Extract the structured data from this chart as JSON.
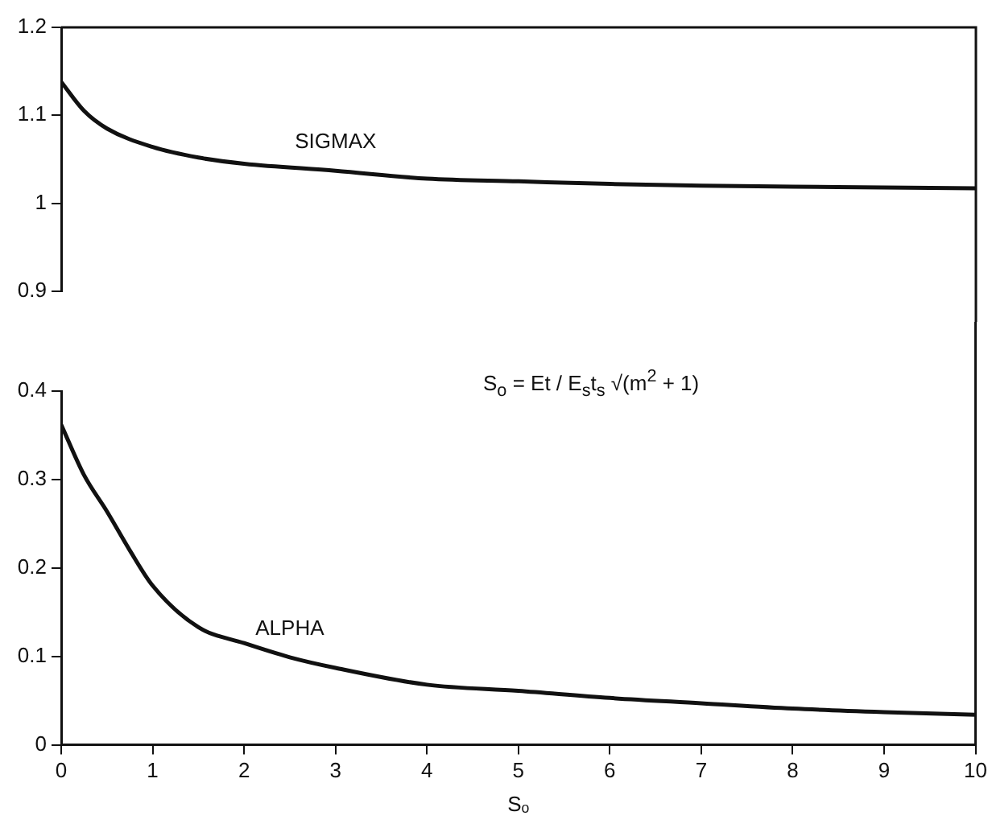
{
  "chart_data": [
    {
      "type": "line",
      "xlim": [
        0,
        10
      ],
      "ylim": [
        0.9,
        1.2
      ],
      "yticks": [
        0.9,
        1.0,
        1.1,
        1.2
      ],
      "tick_labels": "y",
      "grid": false,
      "legend": false,
      "marker": "none",
      "line_style": "solid",
      "series": [
        {
          "name": "SIGMAX",
          "color": "#111111",
          "x": [
            0,
            0.25,
            0.5,
            1,
            1.5,
            2,
            3,
            4,
            5,
            6,
            7,
            8,
            9,
            10
          ],
          "values": [
            1.138,
            1.105,
            1.085,
            1.064,
            1.052,
            1.045,
            1.037,
            1.028,
            1.025,
            1.022,
            1.02,
            1.019,
            1.018,
            1.017
          ]
        }
      ]
    },
    {
      "type": "line",
      "xlim": [
        0,
        10
      ],
      "xticks": [
        0,
        1,
        2,
        3,
        4,
        5,
        6,
        7,
        8,
        9,
        10
      ],
      "ylim": [
        0,
        0.4
      ],
      "yticks": [
        0,
        0.1,
        0.2,
        0.3,
        0.4
      ],
      "xlabel": "Sₒ",
      "grid": false,
      "legend": false,
      "marker": "none",
      "line_style": "solid",
      "annotations": [
        "S$_{o}$ = Et / E$_{s}$t$_{s}$ √(m$^{2}$ + 1)"
      ],
      "series": [
        {
          "name": "ALPHA",
          "color": "#111111",
          "x": [
            0,
            0.25,
            0.5,
            0.75,
            1,
            1.5,
            2,
            2.5,
            3,
            4,
            5,
            6,
            7,
            8,
            9,
            10
          ],
          "values": [
            0.362,
            0.305,
            0.264,
            0.22,
            0.18,
            0.133,
            0.115,
            0.099,
            0.087,
            0.068,
            0.061,
            0.053,
            0.047,
            0.041,
            0.037,
            0.034
          ]
        }
      ]
    }
  ]
}
